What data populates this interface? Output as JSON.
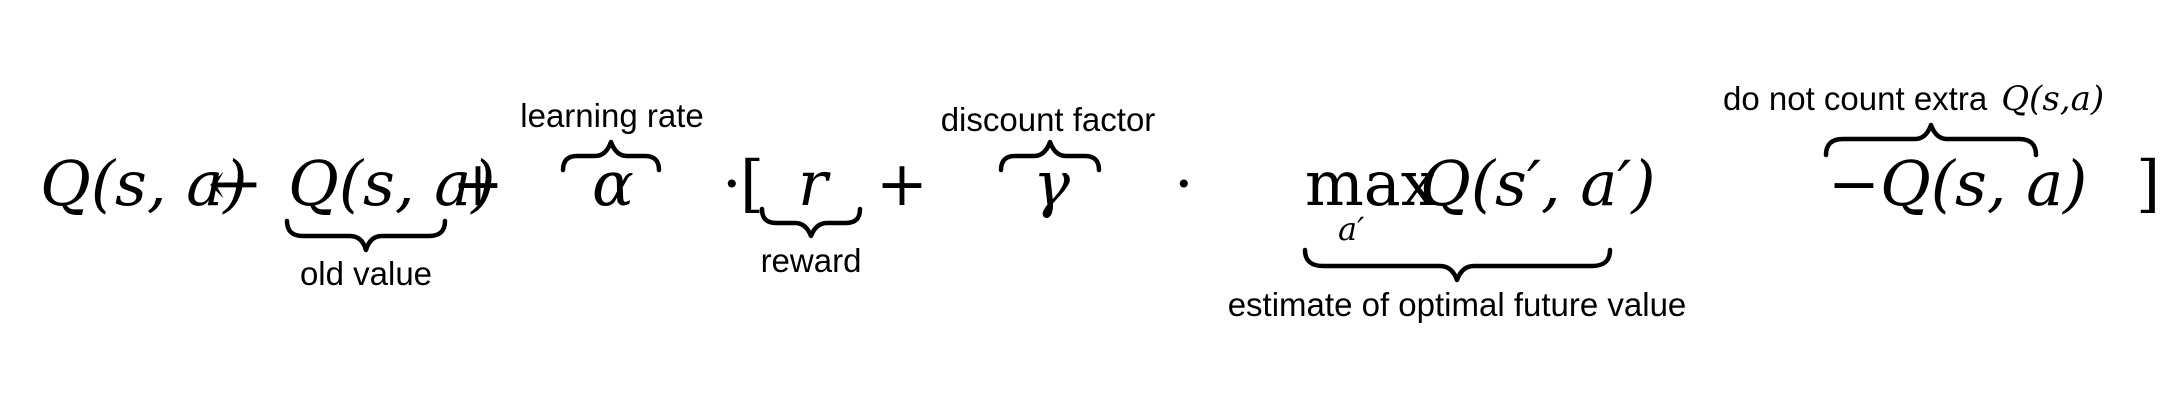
{
  "equation": {
    "lhs": "Q(s, a)",
    "arrow": "←",
    "old_value_term": "Q(s, a)",
    "plus_1": "+",
    "alpha": "α",
    "dot_1": "·",
    "bracket_open": "[",
    "reward_term": "r",
    "plus_2": "+",
    "gamma": "γ",
    "dot_2": "·",
    "max_op": "max",
    "max_sub": "a′",
    "max_q": "Q(s′, a′)",
    "minus_term": "−Q(s, a)",
    "bracket_close": "]"
  },
  "annotations": {
    "old_value": "old value",
    "learning_rate": "learning rate",
    "reward": "reward",
    "discount_factor": "discount factor",
    "estimate": "estimate of optimal future value",
    "do_not_count_text": "do not count extra",
    "do_not_count_math": "Q(s,a)"
  }
}
